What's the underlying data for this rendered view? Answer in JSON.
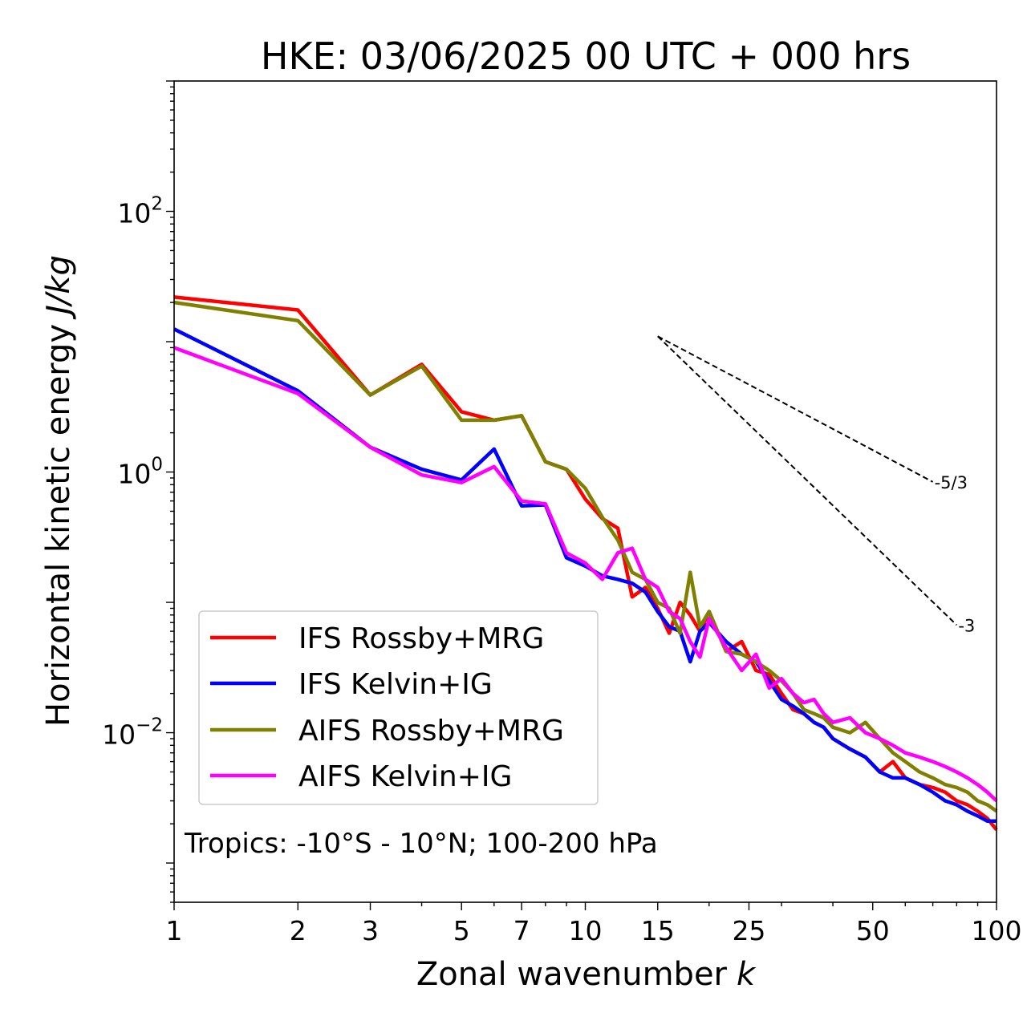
{
  "chart_data": {
    "type": "line",
    "title": "HKE: 03/06/2025 00 UTC + 000 hrs",
    "xlabel_main": "Zonal wavenumber",
    "xlabel_var": "k",
    "ylabel_main": "Horizontal kinetic energy",
    "ylabel_unit": "J/kg",
    "x_scale": "log",
    "y_scale": "log",
    "xlim": [
      1,
      100
    ],
    "ylim": [
      0.0005,
      1000
    ],
    "x_ticks": [
      {
        "value": 1,
        "label": "1"
      },
      {
        "value": 2,
        "label": "2"
      },
      {
        "value": 3,
        "label": "3"
      },
      {
        "value": 5,
        "label": "5"
      },
      {
        "value": 7,
        "label": "7"
      },
      {
        "value": 10,
        "label": "10"
      },
      {
        "value": 15,
        "label": "15"
      },
      {
        "value": 25,
        "label": "25"
      },
      {
        "value": 50,
        "label": "50"
      },
      {
        "value": 100,
        "label": "100"
      }
    ],
    "y_ticks": [
      {
        "value": 100,
        "base": "10",
        "exp": "2"
      },
      {
        "value": 1,
        "base": "10",
        "exp": "0"
      },
      {
        "value": 0.01,
        "base": "10",
        "exp": "−2"
      }
    ],
    "grid": false,
    "legend_position": "lower-left",
    "annotation": "Tropics: -10°S - 10°N; 100-200 hPa",
    "reference_lines": [
      {
        "label": "-5/3",
        "x_start": 15,
        "y_start": 11,
        "x_end": 70,
        "y_end": 0.84
      },
      {
        "label": "-3",
        "x_start": 15,
        "y_start": 11,
        "x_end": 80,
        "y_end": 0.067
      }
    ],
    "series": [
      {
        "name": "IFS Rossby+MRG",
        "color": "#ff0000",
        "x": [
          1,
          2,
          3,
          4,
          5,
          6,
          7,
          8,
          9,
          10,
          11,
          12,
          13,
          14,
          15,
          16,
          17,
          18,
          19,
          20,
          22,
          24,
          26,
          28,
          30,
          32,
          34,
          36,
          38,
          40,
          44,
          48,
          52,
          56,
          60,
          65,
          70,
          75,
          80,
          85,
          90,
          95,
          100
        ],
        "y": [
          22,
          17.5,
          3.9,
          6.7,
          2.9,
          2.5,
          2.7,
          1.2,
          1.05,
          0.62,
          0.44,
          0.37,
          0.11,
          0.13,
          0.09,
          0.058,
          0.1,
          0.08,
          0.06,
          0.085,
          0.042,
          0.05,
          0.03,
          0.028,
          0.02,
          0.015,
          0.014,
          0.012,
          0.011,
          0.009,
          0.0075,
          0.0065,
          0.005,
          0.006,
          0.0045,
          0.004,
          0.0038,
          0.0035,
          0.003,
          0.0028,
          0.0025,
          0.0022,
          0.0018
        ]
      },
      {
        "name": "IFS Kelvin+IG",
        "color": "#0000ff",
        "x": [
          1,
          2,
          3,
          4,
          5,
          6,
          7,
          8,
          9,
          10,
          11,
          12,
          13,
          14,
          15,
          16,
          17,
          18,
          19,
          20,
          22,
          24,
          26,
          28,
          30,
          32,
          34,
          36,
          38,
          40,
          44,
          48,
          52,
          56,
          60,
          65,
          70,
          75,
          80,
          85,
          90,
          95,
          100
        ],
        "y": [
          12.5,
          4.2,
          1.55,
          1.05,
          0.87,
          1.5,
          0.55,
          0.56,
          0.22,
          0.19,
          0.16,
          0.15,
          0.14,
          0.12,
          0.085,
          0.065,
          0.06,
          0.035,
          0.06,
          0.07,
          0.05,
          0.04,
          0.035,
          0.025,
          0.018,
          0.016,
          0.014,
          0.012,
          0.011,
          0.009,
          0.0075,
          0.0065,
          0.005,
          0.0045,
          0.0045,
          0.004,
          0.0035,
          0.003,
          0.0028,
          0.0025,
          0.0023,
          0.0021,
          0.0021
        ]
      },
      {
        "name": "AIFS Rossby+MRG",
        "color": "#808000",
        "x": [
          1,
          2,
          3,
          4,
          5,
          6,
          7,
          8,
          9,
          10,
          11,
          12,
          13,
          14,
          15,
          16,
          17,
          18,
          19,
          20,
          22,
          24,
          26,
          28,
          30,
          32,
          34,
          36,
          38,
          40,
          44,
          48,
          52,
          56,
          60,
          65,
          70,
          75,
          80,
          85,
          90,
          95,
          100
        ],
        "y": [
          20,
          14.5,
          3.9,
          6.5,
          2.5,
          2.5,
          2.7,
          1.2,
          1.05,
          0.75,
          0.45,
          0.3,
          0.17,
          0.15,
          0.1,
          0.09,
          0.058,
          0.17,
          0.065,
          0.085,
          0.042,
          0.04,
          0.035,
          0.03,
          0.025,
          0.02,
          0.015,
          0.014,
          0.013,
          0.011,
          0.01,
          0.012,
          0.009,
          0.007,
          0.006,
          0.005,
          0.0045,
          0.004,
          0.0038,
          0.0035,
          0.003,
          0.0028,
          0.0025
        ]
      },
      {
        "name": "AIFS Kelvin+IG",
        "color": "#ff00ff",
        "x": [
          1,
          2,
          3,
          4,
          5,
          6,
          7,
          8,
          9,
          10,
          11,
          12,
          13,
          14,
          15,
          16,
          17,
          18,
          19,
          20,
          22,
          24,
          26,
          28,
          30,
          32,
          34,
          36,
          38,
          40,
          44,
          48,
          52,
          56,
          60,
          65,
          70,
          75,
          80,
          85,
          90,
          95,
          100
        ],
        "y": [
          9,
          4,
          1.55,
          0.95,
          0.83,
          1.1,
          0.6,
          0.57,
          0.24,
          0.2,
          0.15,
          0.24,
          0.26,
          0.15,
          0.13,
          0.085,
          0.075,
          0.05,
          0.038,
          0.075,
          0.045,
          0.03,
          0.04,
          0.022,
          0.026,
          0.02,
          0.017,
          0.018,
          0.014,
          0.012,
          0.013,
          0.01,
          0.009,
          0.008,
          0.007,
          0.0065,
          0.006,
          0.0055,
          0.005,
          0.0045,
          0.004,
          0.0035,
          0.003
        ]
      }
    ]
  }
}
